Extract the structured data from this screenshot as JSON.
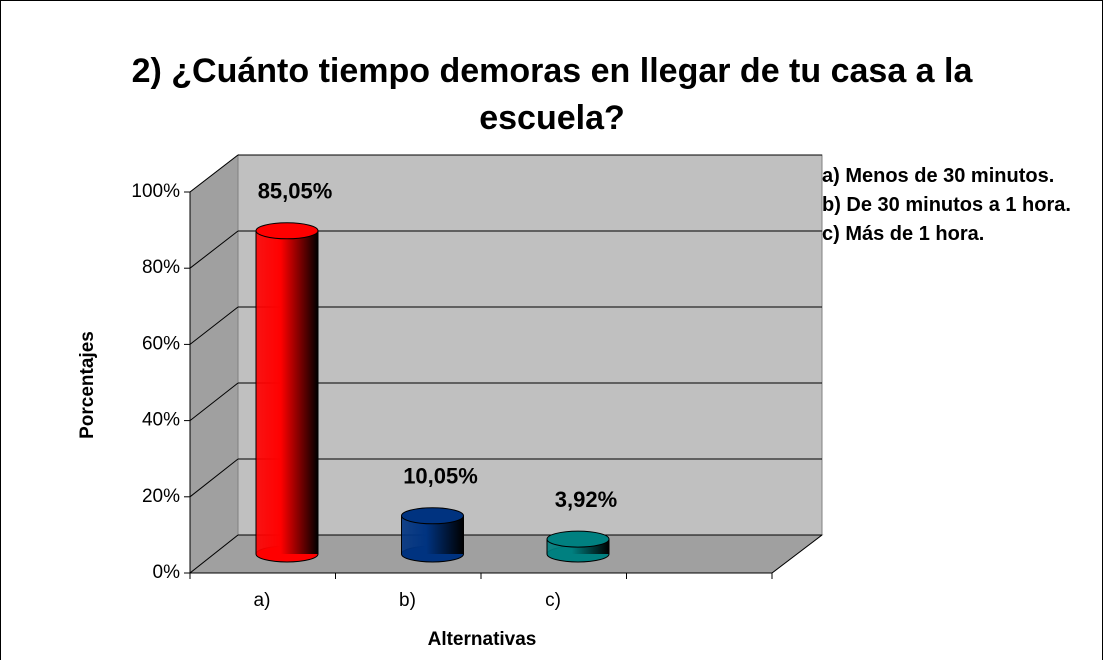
{
  "chart_data": {
    "type": "bar3d",
    "title": "2) ¿Cuánto tiempo demoras en llegar de tu casa a la escuela?",
    "xlabel": "Alternativas",
    "ylabel": "Porcentajes",
    "categories": [
      "a)",
      "b)",
      "c)"
    ],
    "values": [
      85.05,
      10.05,
      3.92
    ],
    "value_labels": [
      "85,05%",
      "10,05%",
      "3,92%"
    ],
    "colors": [
      "#ff0000",
      "#003380",
      "#008080"
    ],
    "legend": [
      "a) Menos de 30 minutos.",
      "b) De 30 minutos a 1 hora.",
      "c) Más de 1 hora."
    ],
    "ylim": [
      0,
      100
    ],
    "yticks": [
      {
        "value": 0,
        "label": "0%"
      },
      {
        "value": 20,
        "label": "20%"
      },
      {
        "value": 40,
        "label": "40%"
      },
      {
        "value": 60,
        "label": "60%"
      },
      {
        "value": 80,
        "label": "80%"
      },
      {
        "value": 100,
        "label": "100%"
      }
    ],
    "grid": true
  }
}
